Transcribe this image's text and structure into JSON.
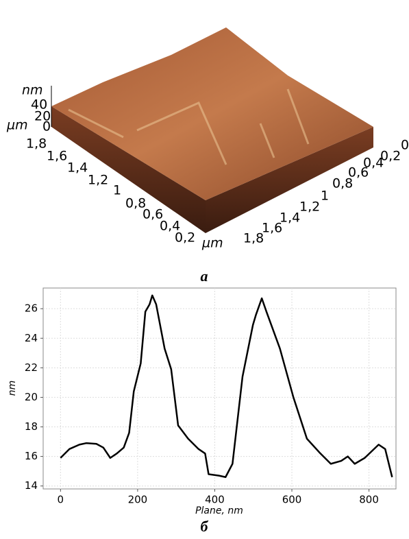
{
  "afm_image": {
    "z_unit": "nm",
    "z_ticks": [
      "40",
      "20",
      "0"
    ],
    "unit_left": "µm",
    "y_ticks": [
      "1,8",
      "1,6",
      "1,4",
      "1,2",
      "1",
      "0,8",
      "0,6",
      "0,4",
      "0,2"
    ],
    "unit_bottom": "µm",
    "x_ticks": [
      "1,8",
      "1,6",
      "1,4",
      "1,2",
      "1",
      "0,8",
      "0,6",
      "0,4",
      "0,2",
      "0"
    ],
    "caption": "a"
  },
  "chart_data": {
    "type": "line",
    "xlabel": "Plane, nm",
    "ylabel": "nm",
    "caption": "б",
    "x": [
      0,
      23,
      49,
      67,
      93,
      111,
      129,
      146,
      164,
      178,
      190,
      208,
      220,
      231,
      238,
      248,
      270,
      287,
      305,
      331,
      358,
      375,
      384,
      411,
      428,
      446,
      472,
      499,
      507,
      522,
      534,
      569,
      604,
      639,
      674,
      701,
      728,
      745,
      763,
      789,
      825,
      842,
      860
    ],
    "values": [
      15.9,
      16.5,
      16.8,
      16.9,
      16.85,
      16.6,
      15.9,
      16.2,
      16.6,
      17.6,
      20.4,
      22.3,
      25.8,
      26.3,
      26.9,
      26.3,
      23.3,
      21.9,
      18.1,
      17.2,
      16.5,
      16.2,
      14.8,
      14.7,
      14.6,
      15.5,
      21.4,
      24.9,
      25.6,
      26.7,
      25.8,
      23.3,
      20.0,
      17.2,
      16.2,
      15.5,
      15.7,
      16.0,
      15.5,
      15.9,
      16.8,
      16.5,
      14.6
    ],
    "color": "#000000",
    "xlim": [
      -45,
      870
    ],
    "ylim": [
      13.8,
      27.4
    ],
    "xticks": [
      0,
      200,
      400,
      600,
      800
    ],
    "yticks": [
      14,
      16,
      18,
      20,
      22,
      24,
      26
    ],
    "grid": true
  }
}
